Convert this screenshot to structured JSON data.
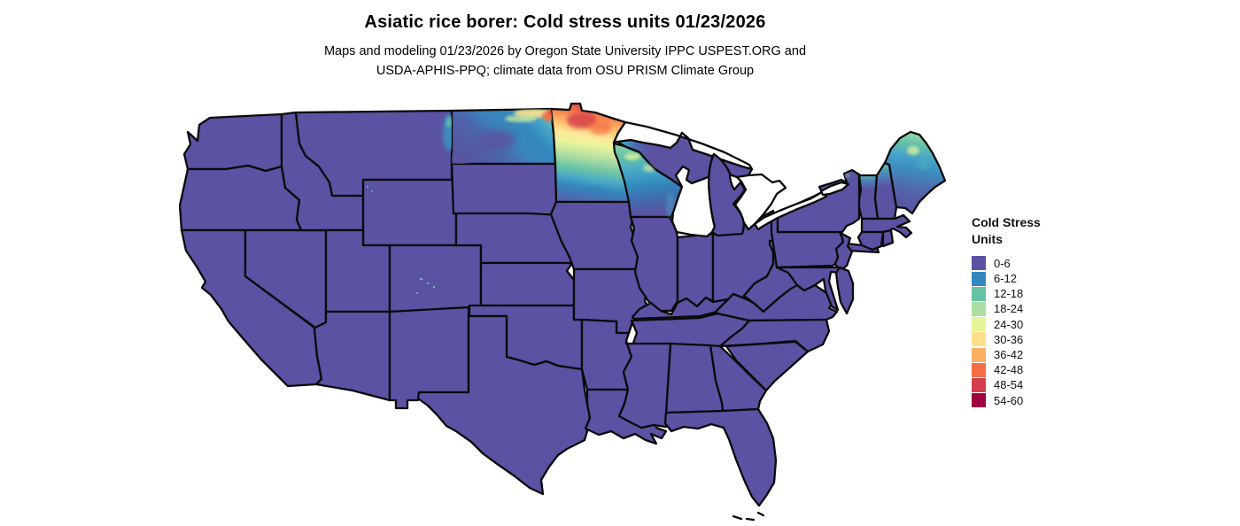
{
  "header": {
    "title": "Asiatic rice borer: Cold stress units 01/23/2026",
    "subtitle_line1": "Maps and modeling 01/23/2026 by Oregon State University IPPC USPEST.ORG and",
    "subtitle_line2": "USDA-APHIS-PPQ; climate data from OSU PRISM Climate Group"
  },
  "legend": {
    "title_line1": "Cold Stress",
    "title_line2": "Units",
    "entries": [
      {
        "label": "0-6",
        "color": "#5b52a3"
      },
      {
        "label": "6-12",
        "color": "#3288bd"
      },
      {
        "label": "12-18",
        "color": "#66c2a5"
      },
      {
        "label": "18-24",
        "color": "#abdda4"
      },
      {
        "label": "24-30",
        "color": "#e6f598"
      },
      {
        "label": "30-36",
        "color": "#fee08b"
      },
      {
        "label": "36-42",
        "color": "#fdae61"
      },
      {
        "label": "42-48",
        "color": "#f46d43"
      },
      {
        "label": "48-54",
        "color": "#d53e4f"
      },
      {
        "label": "54-60",
        "color": "#9e0142"
      }
    ]
  },
  "map": {
    "region": "Contiguous United States with state boundaries",
    "colors": {
      "base": "#5b52a3",
      "state_border": "#0a0a0a",
      "water": "#ffffff"
    },
    "raster_highlights": [
      {
        "region": "northern Minnesota",
        "cold_stress_units": "30-54 (yellow to orange-red core)"
      },
      {
        "region": "North Dakota (east and north)",
        "cold_stress_units": "6-30"
      },
      {
        "region": "northern Wisconsin and western Upper Michigan",
        "cold_stress_units": "6-24"
      },
      {
        "region": "northern Maine, Vermont and New Hampshire",
        "cold_stress_units": "6-24"
      },
      {
        "region": "eastern Montana edge, Colorado and Wyoming mountain specks",
        "cold_stress_units": "6-18"
      },
      {
        "region": "remainder of CONUS",
        "cold_stress_units": "0-6 (purple)"
      }
    ]
  }
}
